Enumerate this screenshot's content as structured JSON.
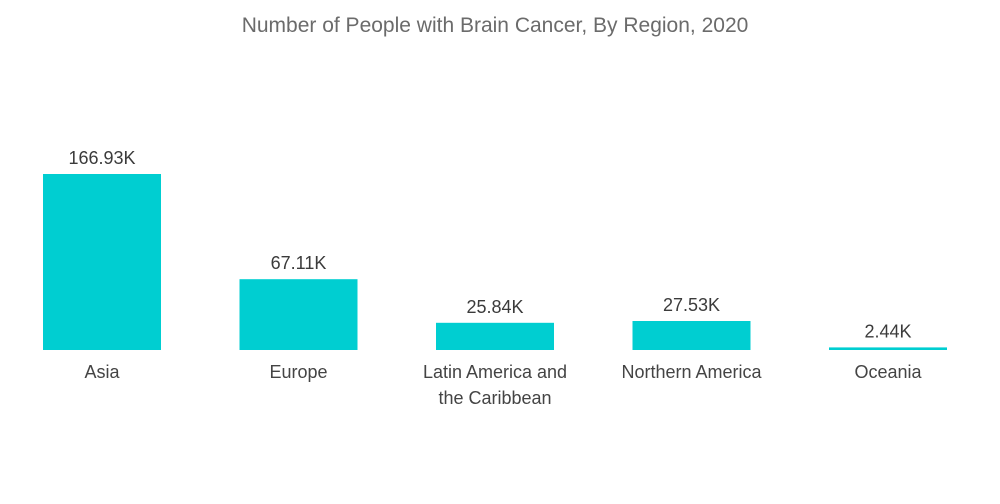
{
  "chart_data": {
    "type": "bar",
    "title": "Number of People with Brain Cancer, By Region, 2020",
    "categories": [
      "Asia",
      "Europe",
      "Latin America and the Caribbean",
      "Northern America",
      "Oceania"
    ],
    "category_lines": [
      [
        "Asia"
      ],
      [
        "Europe"
      ],
      [
        "Latin America and",
        "the Caribbean"
      ],
      [
        "Northern America"
      ],
      [
        "Oceania"
      ]
    ],
    "values": [
      166.93,
      67.11,
      25.84,
      27.53,
      2.44
    ],
    "value_labels": [
      "166.93K",
      "67.11K",
      "25.84K",
      "27.53K",
      "2.44K"
    ],
    "unit": "K",
    "ylim": [
      0,
      166.93
    ],
    "grid": false,
    "legend": "none",
    "bar_color": "#00ced1"
  }
}
